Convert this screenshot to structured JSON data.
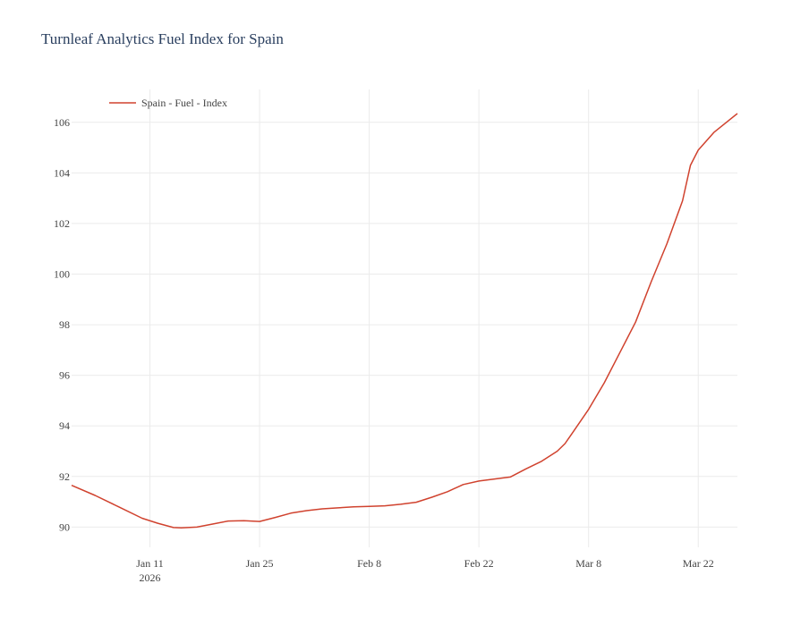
{
  "title": "Turnleaf Analytics Fuel Index for Spain",
  "chart_data": {
    "type": "line",
    "title": "Turnleaf Analytics Fuel Index for Spain",
    "xlabel": "",
    "ylabel": "",
    "x_range": [
      "2026-01-01",
      "2026-03-27"
    ],
    "ylim": [
      89.2,
      107.3
    ],
    "grid": true,
    "legend_position": "top-left",
    "x_ticks": [
      {
        "date": "2026-01-11",
        "label": "Jan 11",
        "sublabel": "2026"
      },
      {
        "date": "2026-01-25",
        "label": "Jan 25",
        "sublabel": ""
      },
      {
        "date": "2026-02-08",
        "label": "Feb 8",
        "sublabel": ""
      },
      {
        "date": "2026-02-22",
        "label": "Feb 22",
        "sublabel": ""
      },
      {
        "date": "2026-03-08",
        "label": "Mar 8",
        "sublabel": ""
      },
      {
        "date": "2026-03-22",
        "label": "Mar 22",
        "sublabel": ""
      }
    ],
    "y_ticks": [
      90,
      92,
      94,
      96,
      98,
      100,
      102,
      104,
      106
    ],
    "series": [
      {
        "name": "Spain - Fuel - Index",
        "color": "#d0422e",
        "x": [
          "2026-01-01",
          "2026-01-04",
          "2026-01-07",
          "2026-01-10",
          "2026-01-12",
          "2026-01-14",
          "2026-01-15",
          "2026-01-17",
          "2026-01-19",
          "2026-01-21",
          "2026-01-23",
          "2026-01-25",
          "2026-01-27",
          "2026-01-29",
          "2026-01-31",
          "2026-02-02",
          "2026-02-04",
          "2026-02-06",
          "2026-02-08",
          "2026-02-10",
          "2026-02-12",
          "2026-02-14",
          "2026-02-16",
          "2026-02-18",
          "2026-02-20",
          "2026-02-22",
          "2026-02-24",
          "2026-02-26",
          "2026-02-28",
          "2026-03-02",
          "2026-03-04",
          "2026-03-05",
          "2026-03-06",
          "2026-03-08",
          "2026-03-10",
          "2026-03-12",
          "2026-03-14",
          "2026-03-16",
          "2026-03-18",
          "2026-03-20",
          "2026-03-21",
          "2026-03-22",
          "2026-03-24",
          "2026-03-27"
        ],
        "y": [
          91.65,
          91.25,
          90.8,
          90.35,
          90.15,
          89.98,
          89.97,
          90.0,
          90.12,
          90.24,
          90.25,
          90.22,
          90.38,
          90.55,
          90.65,
          90.72,
          90.76,
          90.8,
          90.82,
          90.84,
          90.9,
          90.98,
          91.18,
          91.4,
          91.68,
          91.82,
          91.9,
          91.98,
          92.3,
          92.6,
          93.0,
          93.3,
          93.75,
          94.65,
          95.7,
          96.9,
          98.1,
          99.7,
          101.2,
          102.9,
          104.3,
          104.9,
          105.6,
          106.35
        ]
      }
    ]
  }
}
